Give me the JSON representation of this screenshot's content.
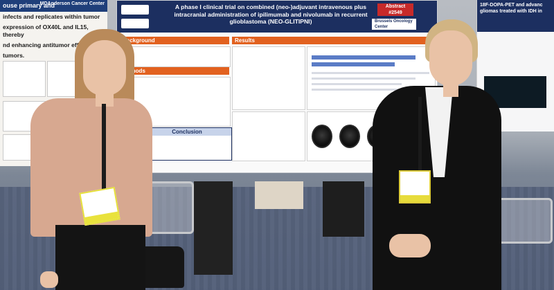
{
  "image_type": "photo",
  "left_poster": {
    "logo": "MDAnderson Cancer Center",
    "lines": [
      "ouse primary and",
      "infects and replicates within tumor",
      "expression of OX40L and IL15, thereby",
      "nd enhancing antitumor efficacy",
      "tumors."
    ]
  },
  "main_poster": {
    "title": "A phase I clinical trial on combined (neo-)adjuvant intravenous plus intracranial administration of ipilimumab and nivolumab in recurrent glioblastoma (NEO-GLITIPNI)",
    "abstract_label": "Abstract",
    "abstract_number": "#2549",
    "institution": "Brussels Oncology Center",
    "sections": {
      "background": "Background",
      "results": "Results",
      "methods": "Methods",
      "conclusion": "Conclusion"
    }
  },
  "right_poster": {
    "title_fragment": "18F-DOPA-PET and advanc gliomas treated with IDH in"
  },
  "colors": {
    "poster_header": "#1c2f60",
    "section_header": "#e2611f",
    "abstract_badge": "#c72a2a"
  }
}
